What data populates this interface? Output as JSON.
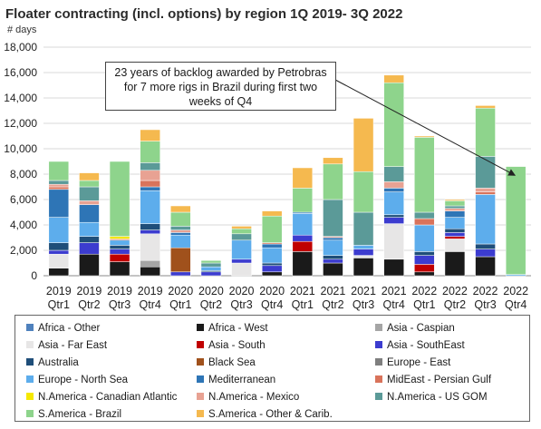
{
  "chart_data": {
    "type": "bar",
    "stacked": true,
    "title": "Floater contracting (incl. options) by region 1Q 2019- 3Q 2022",
    "ylabel": "# days",
    "ylim": [
      0,
      18000
    ],
    "yticks": [
      0,
      2000,
      4000,
      6000,
      8000,
      10000,
      12000,
      14000,
      16000,
      18000
    ],
    "ytick_labels": [
      "0",
      "2,000",
      "4,000",
      "6,000",
      "8,000",
      "10,000",
      "12,000",
      "14,000",
      "16,000",
      "18,000"
    ],
    "grid": true,
    "legend_position": "bottom",
    "categories": [
      [
        "2019",
        "Qtr1"
      ],
      [
        "2019",
        "Qtr2"
      ],
      [
        "2019",
        "Qtr3"
      ],
      [
        "2019",
        "Qtr4"
      ],
      [
        "2020",
        "Qtr1"
      ],
      [
        "2020",
        "Qtr2"
      ],
      [
        "2020",
        "Qtr3"
      ],
      [
        "2020",
        "Qtr4"
      ],
      [
        "2021",
        "Qtr1"
      ],
      [
        "2021",
        "Qtr2"
      ],
      [
        "2021",
        "Qtr3"
      ],
      [
        "2021",
        "Qtr4"
      ],
      [
        "2022",
        "Qtr1"
      ],
      [
        "2022",
        "Qtr2"
      ],
      [
        "2022",
        "Qtr3"
      ],
      [
        "2022",
        "Qtr4"
      ]
    ],
    "annotation": {
      "text": "23 years of backlog awarded by Petrobras for 7 more rigs in Brazil during first two weeks of Q4",
      "lines": [
        "23 years of backlog awarded by Petrobras",
        "for 7 more rigs in Brazil during first two",
        "weeks of Q4"
      ],
      "points_to_category": 15
    },
    "series": [
      {
        "name": "Africa - Other",
        "color": "#4f81bd",
        "values": [
          0,
          0,
          0,
          0,
          0,
          0,
          0,
          0,
          0,
          0,
          0,
          0,
          0,
          0,
          0,
          0
        ]
      },
      {
        "name": "Africa - West",
        "color": "#1a1a1a",
        "values": [
          600,
          1700,
          1100,
          700,
          0,
          0,
          0,
          300,
          1900,
          1000,
          1400,
          1300,
          300,
          1900,
          1500,
          0
        ]
      },
      {
        "name": "Asia - Caspian",
        "color": "#a5a5a5",
        "values": [
          0,
          0,
          0,
          500,
          0,
          0,
          0,
          0,
          0,
          0,
          0,
          0,
          0,
          0,
          0,
          0
        ]
      },
      {
        "name": "Asia - Far East",
        "color": "#e7e6e6",
        "values": [
          1100,
          0,
          0,
          2100,
          0,
          0,
          1000,
          0,
          0,
          0,
          200,
          2800,
          0,
          1000,
          0,
          0
        ]
      },
      {
        "name": "Asia - South",
        "color": "#c00000",
        "values": [
          0,
          0,
          600,
          0,
          0,
          0,
          0,
          0,
          800,
          0,
          0,
          0,
          600,
          200,
          0,
          0
        ]
      },
      {
        "name": "Asia - SouthEast",
        "color": "#3c3ccf",
        "values": [
          300,
          900,
          400,
          300,
          300,
          300,
          300,
          500,
          500,
          300,
          500,
          500,
          700,
          300,
          600,
          0
        ]
      },
      {
        "name": "Australia",
        "color": "#1f4e79",
        "values": [
          600,
          500,
          300,
          500,
          0,
          100,
          0,
          200,
          0,
          300,
          0,
          200,
          300,
          300,
          400,
          0
        ]
      },
      {
        "name": "Black Sea",
        "color": "#a0511c",
        "values": [
          0,
          0,
          0,
          0,
          1900,
          0,
          0,
          0,
          0,
          0,
          0,
          0,
          0,
          0,
          0,
          0
        ]
      },
      {
        "name": "Europe - East",
        "color": "#7f7f7f",
        "values": [
          0,
          0,
          0,
          0,
          0,
          0,
          0,
          0,
          0,
          0,
          0,
          0,
          0,
          0,
          0,
          0
        ]
      },
      {
        "name": "Europe - North Sea",
        "color": "#5dadec",
        "values": [
          2000,
          1100,
          400,
          2600,
          1000,
          300,
          1500,
          1200,
          1700,
          1200,
          300,
          1800,
          2100,
          900,
          3900,
          100
        ]
      },
      {
        "name": "Mediterranean",
        "color": "#2e75b6",
        "values": [
          2200,
          1400,
          0,
          300,
          200,
          0,
          0,
          300,
          100,
          200,
          0,
          300,
          0,
          500,
          0,
          0
        ]
      },
      {
        "name": "MidEast - Persian Gulf",
        "color": "#d9735b",
        "values": [
          200,
          0,
          100,
          500,
          0,
          0,
          0,
          100,
          0,
          0,
          0,
          0,
          500,
          0,
          200,
          0
        ]
      },
      {
        "name": "N.America - Canadian Atlantic",
        "color": "#f5e800",
        "values": [
          0,
          0,
          200,
          0,
          0,
          0,
          0,
          0,
          0,
          0,
          0,
          0,
          0,
          0,
          0,
          0
        ]
      },
      {
        "name": "N.America - Mexico",
        "color": "#e8a293",
        "values": [
          200,
          300,
          0,
          800,
          200,
          0,
          0,
          0,
          0,
          100,
          0,
          500,
          0,
          200,
          300,
          0
        ]
      },
      {
        "name": "N.America - US GOM",
        "color": "#5b9a98",
        "values": [
          300,
          1100,
          0,
          600,
          300,
          300,
          500,
          0,
          0,
          2900,
          2600,
          1200,
          500,
          200,
          2500,
          0
        ]
      },
      {
        "name": "S.America - Brazil",
        "color": "#8ed48c",
        "values": [
          1500,
          500,
          5900,
          1700,
          1100,
          200,
          400,
          2100,
          1900,
          2800,
          3200,
          6600,
          5900,
          400,
          3800,
          8500
        ]
      },
      {
        "name": "S.America - Other & Carib.",
        "color": "#f5b94f",
        "values": [
          0,
          600,
          0,
          900,
          500,
          0,
          200,
          400,
          1600,
          500,
          4200,
          600,
          100,
          100,
          200,
          0
        ]
      }
    ]
  }
}
